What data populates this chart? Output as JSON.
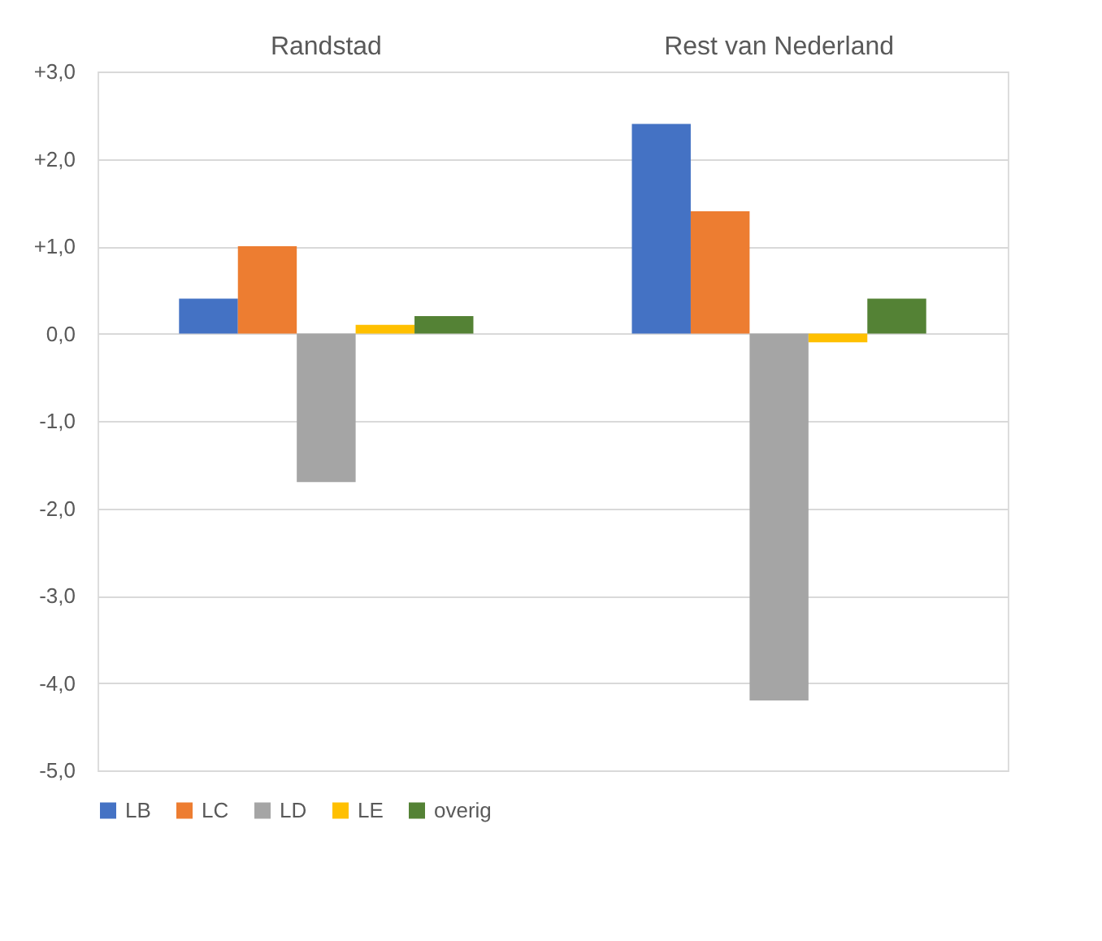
{
  "chart_data": {
    "type": "bar",
    "categories": [
      "Randstad",
      "Rest van Nederland"
    ],
    "series": [
      {
        "name": "LB",
        "color": "#4472c4",
        "values": [
          0.4,
          2.4
        ]
      },
      {
        "name": "LC",
        "color": "#ed7d31",
        "values": [
          1.0,
          1.4
        ]
      },
      {
        "name": "LD",
        "color": "#a5a5a5",
        "values": [
          -1.7,
          -4.2
        ]
      },
      {
        "name": "LE",
        "color": "#ffc000",
        "values": [
          0.1,
          -0.1
        ]
      },
      {
        "name": "overig",
        "color": "#548235",
        "values": [
          0.2,
          0.4
        ]
      }
    ],
    "ylim": [
      -5.0,
      3.0
    ],
    "yticks": [
      {
        "value": 3,
        "label": "+3,0"
      },
      {
        "value": 2,
        "label": "+2,0"
      },
      {
        "value": 1,
        "label": "+1,0"
      },
      {
        "value": 0,
        "label": "0,0"
      },
      {
        "value": -1,
        "label": "-1,0"
      },
      {
        "value": -2,
        "label": "-2,0"
      },
      {
        "value": -3,
        "label": "-3,0"
      },
      {
        "value": -4,
        "label": "-4,0"
      },
      {
        "value": -5,
        "label": "-5,0"
      }
    ],
    "grid": "y",
    "legend": "bottom"
  }
}
